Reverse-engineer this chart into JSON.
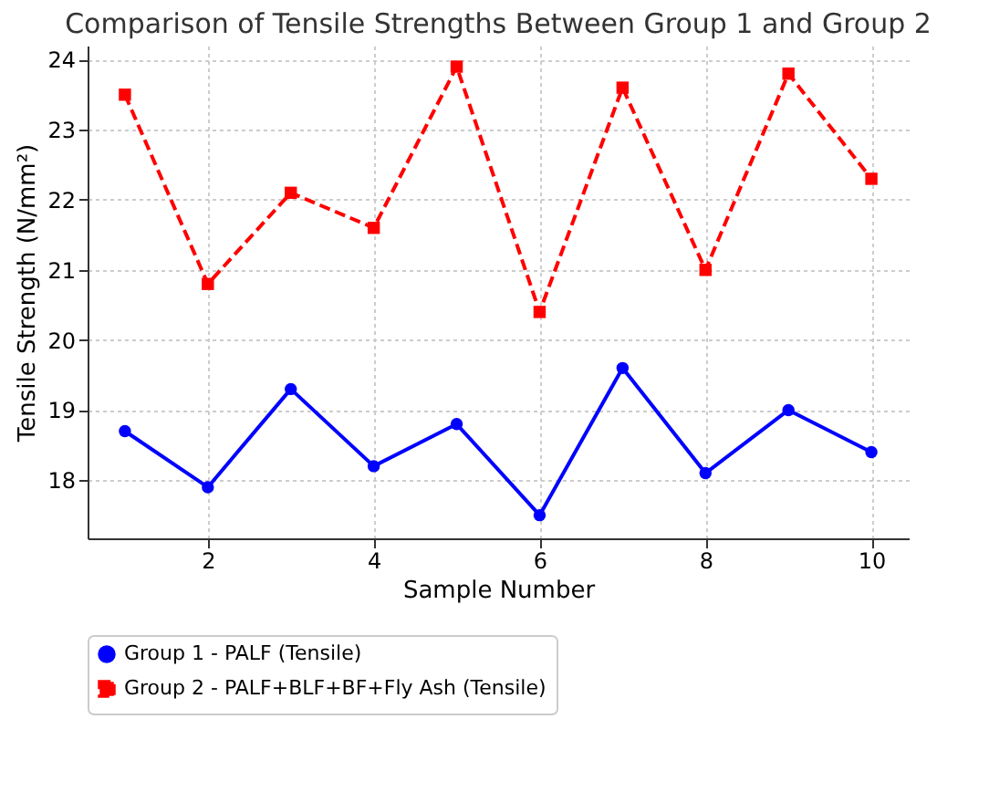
{
  "chart_data": {
    "type": "line",
    "title": "Comparison of Tensile Strengths Between Group 1 and Group 2",
    "xlabel": "Sample Number",
    "ylabel": "Tensile Strength (N/mm²)",
    "x": [
      1,
      2,
      3,
      4,
      5,
      6,
      7,
      8,
      9,
      10
    ],
    "series": [
      {
        "name": "Group 1 - PALF (Tensile)",
        "color": "#0000ff",
        "marker": "circle",
        "line_style": "solid",
        "values": [
          18.7,
          17.9,
          19.3,
          18.2,
          18.8,
          17.5,
          19.6,
          18.1,
          19.0,
          18.4
        ]
      },
      {
        "name": "Group 2 - PALF+BLF+BF+Fly Ash (Tensile)",
        "color": "#ff0000",
        "marker": "square",
        "line_style": "dashed",
        "values": [
          23.5,
          20.8,
          22.1,
          21.6,
          23.9,
          20.4,
          23.6,
          21.0,
          23.8,
          22.3
        ]
      }
    ],
    "xlim": [
      0.55,
      10.45
    ],
    "xticks": [
      2,
      4,
      6,
      8,
      10
    ],
    "ylim": [
      17.17,
      24.2
    ],
    "yticks": [
      18,
      19,
      20,
      21,
      22,
      23,
      24
    ],
    "grid": true,
    "legend": "bottom"
  }
}
